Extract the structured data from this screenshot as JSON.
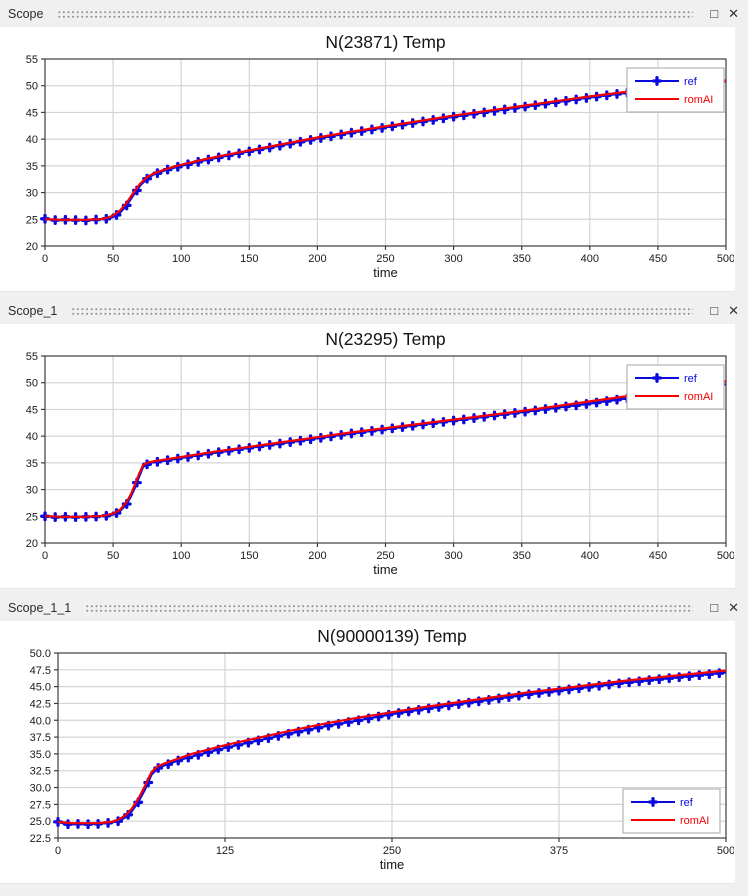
{
  "windows": [
    {
      "title": "Scope",
      "controls": {
        "maximize": "□",
        "close": "✕"
      },
      "chart_data": {
        "type": "line",
        "title": "N(23871) Temp",
        "xlabel": "time",
        "xlim": [
          0,
          500
        ],
        "ylim": [
          20,
          55
        ],
        "xtick_values": [
          0,
          50,
          100,
          150,
          200,
          250,
          300,
          350,
          400,
          450,
          500
        ],
        "xtick_labels": [
          "0",
          "50",
          "100",
          "150",
          "200",
          "250",
          "300",
          "350",
          "400",
          "450",
          "500"
        ],
        "ytick_values": [
          20,
          25,
          30,
          35,
          40,
          45,
          50,
          55
        ],
        "ytick_labels": [
          "20",
          "25",
          "30",
          "35",
          "40",
          "45",
          "50",
          "55"
        ],
        "grid": true,
        "legend_pos": "top-right",
        "marker_step": 7.5,
        "colors": {
          "ref": "#0a0ae0",
          "romAI": "#f40000",
          "grid": "#d4d4d4",
          "frame": "#3c3c3c"
        },
        "series": [
          {
            "name": "ref",
            "marker": "plus",
            "x": [
              0,
              5,
              10,
              15,
              20,
              25,
              30,
              35,
              40,
              45,
              50,
              55,
              60,
              65,
              70,
              75,
              80,
              90,
              100,
              115,
              130,
              150,
              175,
              200,
              225,
              250,
              275,
              300,
              325,
              350,
              375,
              400,
              425,
              450,
              475,
              500
            ],
            "y": [
              25.1,
              24.9,
              24.8,
              24.9,
              24.8,
              24.9,
              24.8,
              24.9,
              25.0,
              25.1,
              25.4,
              26.2,
              27.6,
              29.5,
              31.3,
              32.6,
              33.4,
              34.3,
              35.0,
              35.9,
              36.7,
              37.7,
              38.9,
              40.1,
              41.2,
              42.2,
              43.2,
              44.2,
              45.1,
              46.0,
              46.9,
              47.8,
              48.6,
              49.4,
              50.1,
              50.8
            ]
          },
          {
            "name": "romAI",
            "marker": "none",
            "x": [
              0,
              5,
              10,
              15,
              20,
              25,
              30,
              35,
              40,
              45,
              50,
              55,
              60,
              65,
              70,
              75,
              80,
              90,
              100,
              115,
              130,
              150,
              175,
              200,
              225,
              250,
              275,
              300,
              325,
              350,
              375,
              400,
              425,
              450,
              475,
              500
            ],
            "y": [
              25.0,
              25.0,
              24.9,
              24.9,
              24.9,
              24.9,
              24.9,
              25.0,
              25.0,
              25.2,
              25.7,
              26.6,
              28.1,
              30.0,
              31.7,
              32.9,
              33.6,
              34.5,
              35.2,
              36.1,
              36.9,
              37.9,
              39.1,
              40.3,
              41.4,
              42.4,
              43.4,
              44.4,
              45.3,
              46.2,
              47.1,
              48.0,
              48.8,
              49.6,
              50.3,
              51.0
            ]
          }
        ]
      }
    },
    {
      "title": "Scope_1",
      "controls": {
        "maximize": "□",
        "close": "✕"
      },
      "chart_data": {
        "type": "line",
        "title": "N(23295) Temp",
        "xlabel": "time",
        "xlim": [
          0,
          500
        ],
        "ylim": [
          20,
          55
        ],
        "xtick_values": [
          0,
          50,
          100,
          150,
          200,
          250,
          300,
          350,
          400,
          450,
          500
        ],
        "xtick_labels": [
          "0",
          "50",
          "100",
          "150",
          "200",
          "250",
          "300",
          "350",
          "400",
          "450",
          "500"
        ],
        "ytick_values": [
          20,
          25,
          30,
          35,
          40,
          45,
          50,
          55
        ],
        "ytick_labels": [
          "20",
          "25",
          "30",
          "35",
          "40",
          "45",
          "50",
          "55"
        ],
        "grid": true,
        "legend_pos": "top-right",
        "marker_step": 7.5,
        "colors": {
          "ref": "#0a0ae0",
          "romAI": "#f40000",
          "grid": "#d4d4d4",
          "frame": "#3c3c3c"
        },
        "series": [
          {
            "name": "ref",
            "marker": "plus",
            "x": [
              0,
              5,
              10,
              15,
              20,
              25,
              30,
              35,
              40,
              45,
              50,
              55,
              60,
              63,
              66,
              69,
              72,
              76,
              80,
              90,
              100,
              125,
              150,
              175,
              200,
              225,
              250,
              275,
              300,
              325,
              350,
              375,
              400,
              425,
              450,
              475,
              500
            ],
            "y": [
              25.0,
              24.9,
              24.8,
              24.9,
              24.8,
              24.9,
              24.9,
              24.9,
              25.0,
              25.1,
              25.3,
              25.9,
              27.3,
              28.6,
              30.3,
              32.3,
              34.2,
              34.9,
              35.1,
              35.5,
              35.9,
              36.9,
              37.8,
              38.7,
              39.6,
              40.5,
              41.3,
              42.1,
              42.9,
              43.7,
              44.5,
              45.3,
              46.1,
              47.0,
              47.9,
              48.8,
              49.7
            ]
          },
          {
            "name": "romAI",
            "marker": "none",
            "x": [
              0,
              5,
              10,
              15,
              20,
              25,
              30,
              35,
              40,
              45,
              50,
              55,
              60,
              63,
              66,
              69,
              72,
              76,
              80,
              90,
              100,
              125,
              150,
              175,
              200,
              225,
              250,
              275,
              300,
              325,
              350,
              375,
              400,
              425,
              450,
              475,
              500
            ],
            "y": [
              25.0,
              25.0,
              24.9,
              24.9,
              24.9,
              24.9,
              24.9,
              25.0,
              25.0,
              25.2,
              25.5,
              26.2,
              27.7,
              29.1,
              30.9,
              32.9,
              34.6,
              35.1,
              35.3,
              35.7,
              36.1,
              37.1,
              38.0,
              38.9,
              39.8,
              40.7,
              41.5,
              42.3,
              43.1,
              43.9,
              44.7,
              45.6,
              46.5,
              47.4,
              48.3,
              49.3,
              50.3
            ]
          }
        ]
      }
    },
    {
      "title": "Scope_1_1",
      "controls": {
        "maximize": "□",
        "close": "✕"
      },
      "chart_data": {
        "type": "line",
        "title": "N(90000139) Temp",
        "xlabel": "time",
        "xlim": [
          0,
          500
        ],
        "ylim": [
          22.5,
          50
        ],
        "xtick_values": [
          0,
          125,
          250,
          375,
          500
        ],
        "xtick_labels": [
          "0",
          "125",
          "250",
          "375",
          "500"
        ],
        "ytick_values": [
          22.5,
          25,
          27.5,
          30,
          32.5,
          35,
          37.5,
          40,
          42.5,
          45,
          47.5,
          50
        ],
        "ytick_labels": [
          "22.5",
          "25.0",
          "27.5",
          "30.0",
          "32.5",
          "35.0",
          "37.5",
          "40.0",
          "42.5",
          "45.0",
          "47.5",
          "50.0"
        ],
        "grid": true,
        "legend_pos": "bottom-right",
        "marker_step": 7.5,
        "colors": {
          "ref": "#0a0ae0",
          "romAI": "#f40000",
          "grid": "#d4d4d4",
          "frame": "#3c3c3c"
        },
        "series": [
          {
            "name": "ref",
            "marker": "plus",
            "x": [
              0,
              5,
              10,
              15,
              20,
              25,
              30,
              35,
              40,
              45,
              50,
              55,
              60,
              65,
              70,
              75,
              80,
              90,
              100,
              125,
              150,
              175,
              200,
              225,
              250,
              275,
              300,
              325,
              350,
              375,
              400,
              425,
              450,
              475,
              500
            ],
            "y": [
              24.9,
              24.6,
              24.5,
              24.6,
              24.5,
              24.6,
              24.6,
              24.7,
              24.8,
              25.0,
              25.5,
              26.4,
              27.8,
              29.6,
              31.9,
              32.9,
              33.3,
              34.0,
              34.6,
              35.9,
              37.0,
              38.1,
              39.1,
              40.0,
              40.9,
              41.7,
              42.4,
              43.1,
              43.8,
              44.4,
              45.0,
              45.6,
              46.1,
              46.6,
              47.1
            ]
          },
          {
            "name": "romAI",
            "marker": "none",
            "x": [
              0,
              5,
              10,
              15,
              20,
              25,
              30,
              35,
              40,
              45,
              50,
              55,
              60,
              65,
              70,
              75,
              80,
              90,
              100,
              125,
              150,
              175,
              200,
              225,
              250,
              275,
              300,
              325,
              350,
              375,
              400,
              425,
              450,
              475,
              500
            ],
            "y": [
              24.9,
              24.8,
              24.7,
              24.7,
              24.7,
              24.7,
              24.7,
              24.8,
              24.9,
              25.2,
              25.8,
              26.8,
              28.3,
              30.2,
              32.3,
              33.2,
              33.6,
              34.3,
              35.0,
              36.3,
              37.4,
              38.5,
              39.5,
              40.4,
              41.2,
              42.0,
              42.7,
              43.4,
              44.1,
              44.7,
              45.3,
              45.9,
              46.4,
              46.9,
              47.4
            ]
          }
        ]
      }
    }
  ]
}
